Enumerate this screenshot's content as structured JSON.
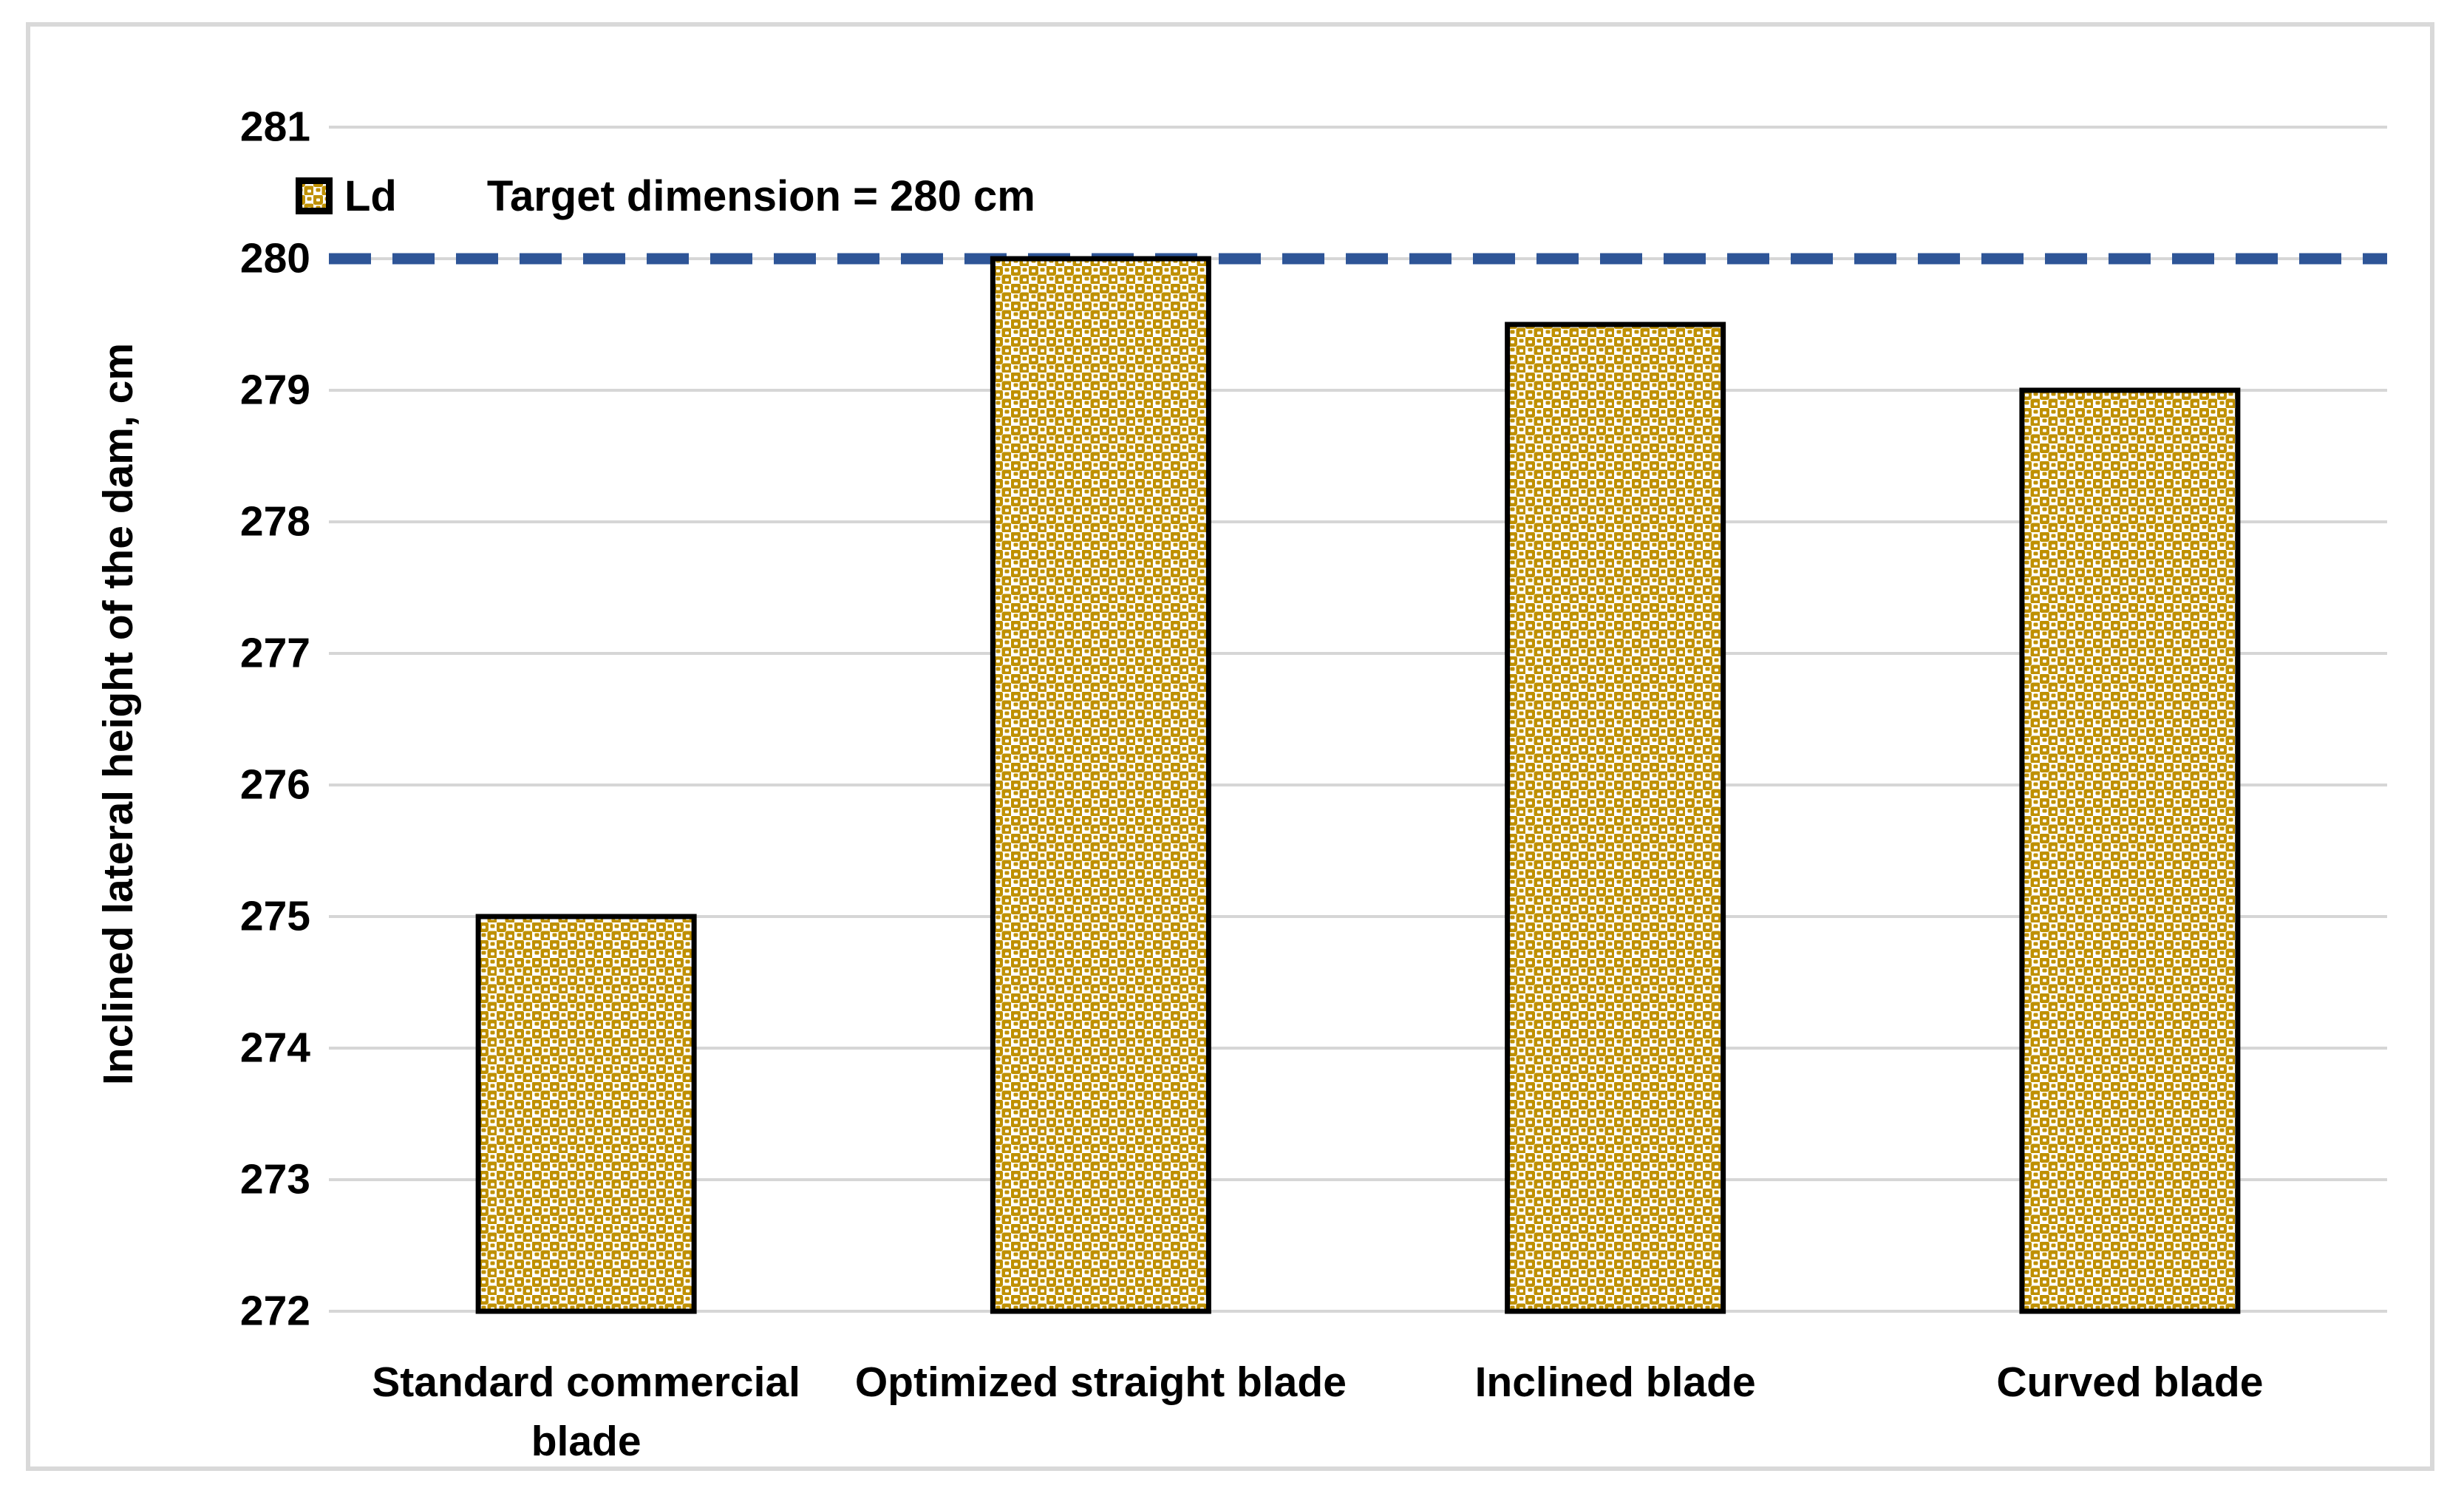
{
  "chart_data": {
    "type": "bar",
    "categories": [
      "Standard commercial blade",
      "Optimized straight blade",
      "Inclined blade",
      "Curved blade"
    ],
    "series": [
      {
        "name": "Ld",
        "values": [
          275,
          280,
          279.5,
          279
        ]
      }
    ],
    "title": "",
    "xlabel": "",
    "ylabel": "Inclined lateral height of the dam, cm",
    "ylim": [
      272,
      281
    ],
    "yticks": [
      272,
      273,
      274,
      275,
      276,
      277,
      278,
      279,
      280,
      281
    ],
    "grid": true,
    "legend_position": "top-left",
    "target_line": {
      "value": 280,
      "label": "Target dimension = 280 cm",
      "color": "#2E5597",
      "style": "dashed"
    },
    "colors": {
      "bar_fill": "#BF9000",
      "bar_border": "#000000",
      "gridline": "#D6D6D6",
      "frame_border": "#D9D9D9",
      "text": "#000000"
    }
  },
  "legend": {
    "series_label": "Ld",
    "target_label": "Target dimension = 280 cm"
  },
  "axes": {
    "y_title": "Inclined lateral height of the dam, cm"
  }
}
